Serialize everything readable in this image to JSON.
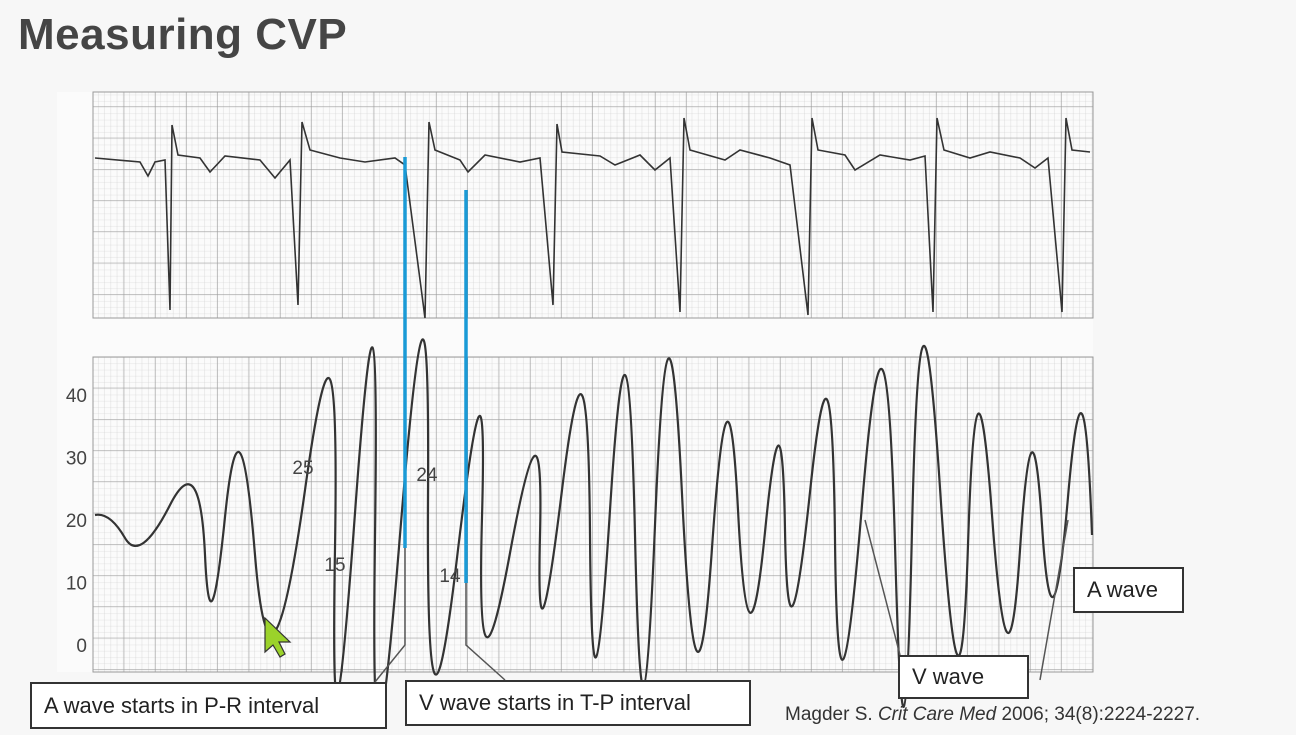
{
  "title": "Measuring CVP",
  "figure": {
    "y_axis_ticks": [
      40,
      30,
      20,
      10,
      0
    ],
    "point_labels": [
      25,
      15,
      24,
      14
    ]
  },
  "callouts": [
    "A wave starts in P-R interval",
    "V wave starts in T-P interval",
    "V wave",
    "A wave"
  ],
  "citation": {
    "author": "Magder S.",
    "journal": "Crit Care Med",
    "details": "2006; 34(8):2224-2227."
  }
}
